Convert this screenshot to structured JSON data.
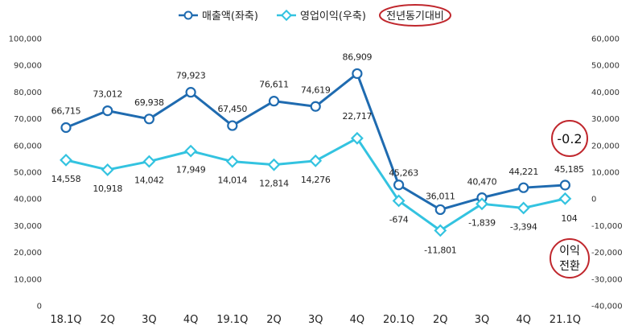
{
  "chart_data": {
    "type": "line",
    "categories": [
      "18.1Q",
      "2Q",
      "3Q",
      "4Q",
      "19.1Q",
      "2Q",
      "3Q",
      "4Q",
      "20.1Q",
      "2Q",
      "3Q",
      "4Q",
      "21.1Q"
    ],
    "series": [
      {
        "name": "매출액(좌축)",
        "axis": "left",
        "color": "#1F6BB0",
        "marker": "circle",
        "values": [
          66715,
          73012,
          69938,
          79923,
          67450,
          76611,
          74619,
          86909,
          45263,
          36011,
          40470,
          44221,
          45185
        ],
        "labels": [
          "66,715",
          "73,012",
          "69,938",
          "79,923",
          "67,450",
          "76,611",
          "74,619",
          "86,909",
          "45,263",
          "36,011",
          "40,470",
          "44,221",
          "45,185"
        ]
      },
      {
        "name": "영업이익(우축)",
        "axis": "right",
        "color": "#33C3E0",
        "marker": "diamond",
        "values": [
          14558,
          10918,
          14042,
          17949,
          14014,
          12814,
          14276,
          22717,
          -674,
          -11801,
          -1839,
          -3394,
          104
        ],
        "labels": [
          "14,558",
          "10,918",
          "14,042",
          "17,949",
          "14,014",
          "12,814",
          "14,276",
          "22,717",
          "-674",
          "-11,801",
          "-1,839",
          "-3,394",
          "104"
        ]
      }
    ],
    "y_left": {
      "ylim": [
        0,
        100000
      ],
      "ticks": [
        0,
        10000,
        20000,
        30000,
        40000,
        50000,
        60000,
        70000,
        80000,
        90000,
        100000
      ],
      "tick_labels": [
        "0",
        "10,000",
        "20,000",
        "30,000",
        "40,000",
        "50,000",
        "60,000",
        "70,000",
        "80,000",
        "90,000",
        "100,000"
      ]
    },
    "y_right": {
      "ylim": [
        -40000,
        60000
      ],
      "ticks": [
        -40000,
        -30000,
        -20000,
        -10000,
        0,
        10000,
        20000,
        30000,
        40000,
        50000,
        60000
      ],
      "tick_labels": [
        "-40,000",
        "-30,000",
        "-20,000",
        "-10,000",
        "0",
        "10,000",
        "20,000",
        "30,000",
        "40,000",
        "50,000",
        "60,000"
      ]
    },
    "grid": false,
    "legend": "top-center",
    "annotations": {
      "legend_note": "전년동기대비",
      "revenue_change": "-0.2",
      "profit_note_line1": "이익",
      "profit_note_line2": "전환",
      "highlight_color": "#C0272D"
    }
  }
}
